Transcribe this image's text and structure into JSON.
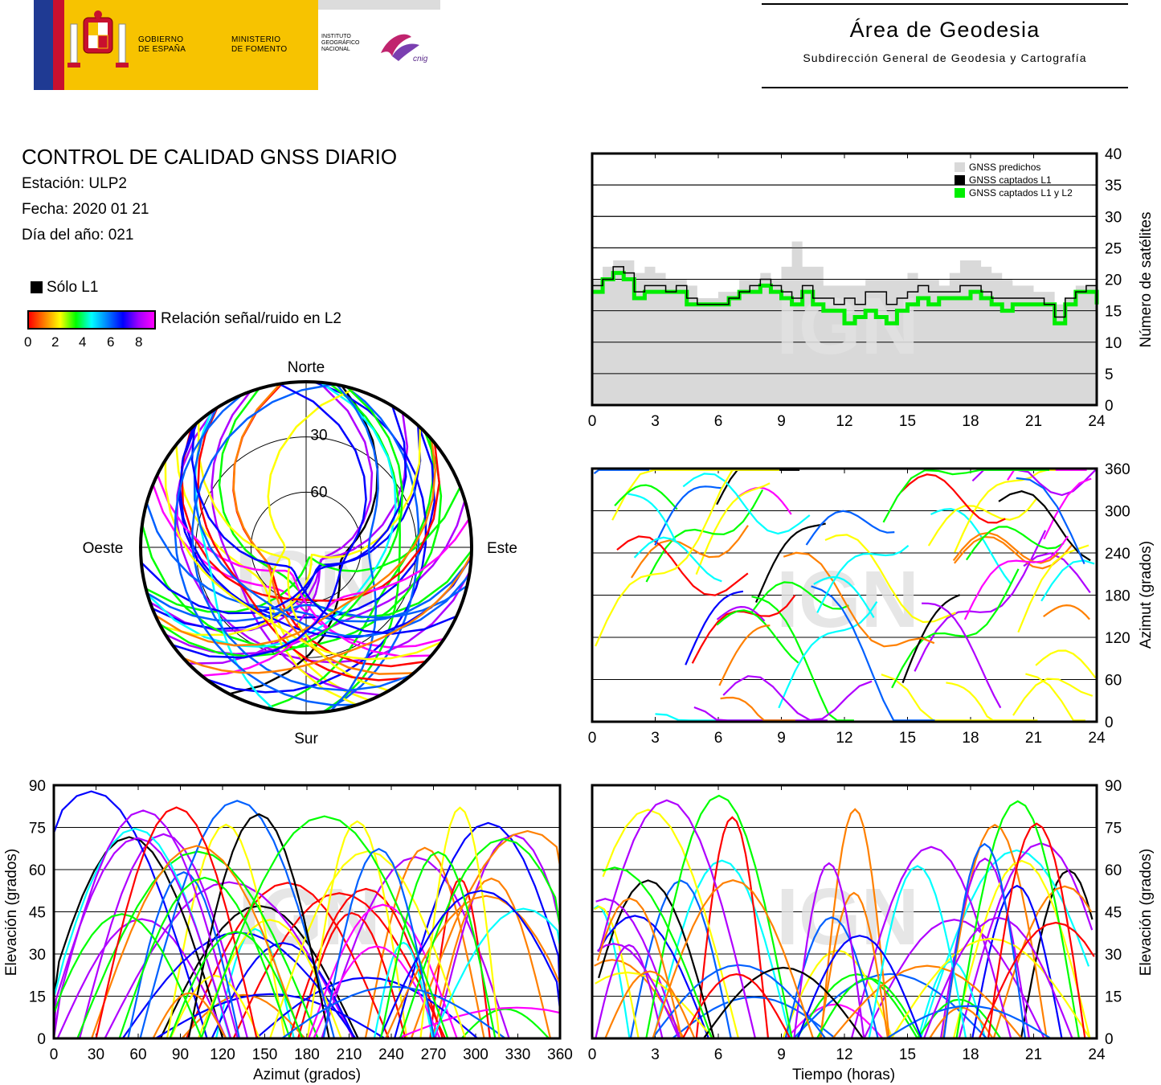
{
  "header": {
    "gov_line1": "GOBIERNO",
    "gov_line2": "DE ESPAÑA",
    "ministry_line1": "MINISTERIO",
    "ministry_line2": "DE FOMENTO",
    "institute_line1": "INSTITUTO",
    "institute_line2": "GEOGRÁFICO",
    "institute_line3": "NACIONAL",
    "cnig": "cnig",
    "area_title": "Área de Geodesia",
    "area_subtitle": "Subdirección General de Geodesia y Cartografía"
  },
  "info": {
    "title": "CONTROL DE CALIDAD GNSS DIARIO",
    "station": "Estación: ULP2",
    "date": "Fecha: 2020 01 21",
    "doy": "Día del año: 021",
    "only_l1": "Sólo L1",
    "snr_label": "Relación señal/ruido en L2",
    "snr_ticks": [
      "0",
      "2",
      "4",
      "6",
      "8"
    ]
  },
  "watermark": "IGN",
  "colors": {
    "predicted": "#d9d9d9",
    "l1": "#000000",
    "l1l2": "#00ee00",
    "snr_scale": [
      "#ff0000",
      "#ff8000",
      "#ffff00",
      "#00ff00",
      "#00ffff",
      "#0060ff",
      "#0000ff",
      "#b000ff",
      "#ff00ff"
    ]
  },
  "chart_data": [
    {
      "type": "area",
      "id": "satellites",
      "xlabel": "",
      "ylabel": "Número de satélites",
      "xlim": [
        0,
        24
      ],
      "ylim": [
        0,
        40
      ],
      "xticks": [
        "0",
        "3",
        "6",
        "9",
        "12",
        "15",
        "18",
        "21",
        "24"
      ],
      "yticks": [
        "0",
        "5",
        "10",
        "15",
        "20",
        "25",
        "30",
        "35",
        "40"
      ],
      "grid": true,
      "legend_position": "top-right",
      "series": [
        {
          "name": "GNSS predichos",
          "color": "#d9d9d9",
          "x": [
            0,
            0.5,
            1,
            1.5,
            2,
            2.5,
            3,
            3.5,
            4,
            4.5,
            5,
            5.5,
            6,
            6.5,
            7,
            7.5,
            8,
            8.5,
            9,
            9.5,
            10,
            10.5,
            11,
            11.5,
            12,
            12.5,
            13,
            13.5,
            14,
            14.5,
            15,
            15.5,
            16,
            16.5,
            17,
            17.5,
            18,
            18.5,
            19,
            19.5,
            20,
            20.5,
            21,
            21.5,
            22,
            22.5,
            23,
            23.5,
            24
          ],
          "y": [
            20,
            22,
            23,
            23,
            21,
            22,
            21,
            20,
            20,
            19,
            17,
            17,
            18,
            18,
            20,
            20,
            21,
            20,
            22,
            26,
            22,
            22,
            19,
            19,
            19,
            19,
            20,
            20,
            20,
            20,
            21,
            20,
            20,
            19,
            21,
            23,
            23,
            22,
            21,
            20,
            19,
            19,
            18,
            18,
            16,
            17,
            19,
            19,
            18
          ]
        },
        {
          "name": "GNSS captados L1",
          "color": "#000000",
          "x": [
            0,
            0.5,
            1,
            1.5,
            2,
            2.5,
            3,
            3.5,
            4,
            4.5,
            5,
            5.5,
            6,
            6.5,
            7,
            7.5,
            8,
            8.5,
            9,
            9.5,
            10,
            10.5,
            11,
            11.5,
            12,
            12.5,
            13,
            13.5,
            14,
            14.5,
            15,
            15.5,
            16,
            16.5,
            17,
            17.5,
            18,
            18.5,
            19,
            19.5,
            20,
            20.5,
            21,
            21.5,
            22,
            22.5,
            23,
            23.5,
            24
          ],
          "y": [
            19,
            20,
            22,
            21,
            18,
            19,
            19,
            18,
            19,
            17,
            16,
            16,
            16,
            17,
            18,
            19,
            20,
            19,
            18,
            17,
            19,
            17,
            17,
            16,
            17,
            16,
            18,
            18,
            16,
            17,
            18,
            19,
            18,
            18,
            18,
            19,
            19,
            18,
            17,
            17,
            17,
            17,
            17,
            16,
            14,
            17,
            18,
            19,
            17
          ]
        },
        {
          "name": "GNSS captados L1 y L2",
          "color": "#00ee00",
          "x": [
            0,
            0.5,
            1,
            1.5,
            2,
            2.5,
            3,
            3.5,
            4,
            4.5,
            5,
            5.5,
            6,
            6.5,
            7,
            7.5,
            8,
            8.5,
            9,
            9.5,
            10,
            10.5,
            11,
            11.5,
            12,
            12.5,
            13,
            13.5,
            14,
            14.5,
            15,
            15.5,
            16,
            16.5,
            17,
            17.5,
            18,
            18.5,
            19,
            19.5,
            20,
            20.5,
            21,
            21.5,
            22,
            22.5,
            23,
            23.5,
            24
          ],
          "y": [
            18,
            20,
            21,
            20,
            17,
            18,
            18,
            18,
            18,
            16,
            16,
            16,
            16,
            17,
            18,
            18,
            19,
            18,
            17,
            16,
            18,
            16,
            15,
            15,
            13,
            14,
            15,
            14,
            13,
            15,
            16,
            17,
            16,
            17,
            17,
            17,
            18,
            17,
            16,
            15,
            16,
            16,
            16,
            16,
            13,
            16,
            18,
            18,
            16
          ]
        }
      ]
    },
    {
      "type": "scatter",
      "id": "skyplot",
      "title": "",
      "labels": {
        "north": "Norte",
        "south": "Sur",
        "east": "Este",
        "west": "Oeste"
      },
      "rings": [
        "30",
        "60"
      ],
      "note": "Satellite tracks, colored by L2 SNR"
    },
    {
      "type": "scatter",
      "id": "azimuth-time",
      "ylabel": "Azimut (grados)",
      "xlim": [
        0,
        24
      ],
      "ylim": [
        0,
        360
      ],
      "xticks": [
        "0",
        "3",
        "6",
        "9",
        "12",
        "15",
        "18",
        "21",
        "24"
      ],
      "yticks": [
        "0",
        "60",
        "120",
        "180",
        "240",
        "300",
        "360"
      ],
      "grid": true
    },
    {
      "type": "scatter",
      "id": "elevation-azimuth",
      "xlabel": "Azimut (grados)",
      "ylabel": "Elevación (grados)",
      "xlim": [
        0,
        360
      ],
      "ylim": [
        0,
        90
      ],
      "xticks": [
        "0",
        "30",
        "60",
        "90",
        "120",
        "150",
        "180",
        "210",
        "240",
        "270",
        "300",
        "330",
        "360"
      ],
      "yticks": [
        "0",
        "15",
        "30",
        "45",
        "60",
        "75",
        "90"
      ],
      "grid": true
    },
    {
      "type": "scatter",
      "id": "elevation-time",
      "xlabel": "Tiempo (horas)",
      "ylabel": "Elevación (grados)",
      "xlim": [
        0,
        24
      ],
      "ylim": [
        0,
        90
      ],
      "xticks": [
        "0",
        "3",
        "6",
        "9",
        "12",
        "15",
        "18",
        "21",
        "24"
      ],
      "yticks": [
        "0",
        "15",
        "30",
        "45",
        "60",
        "75",
        "90"
      ],
      "grid": true
    }
  ]
}
